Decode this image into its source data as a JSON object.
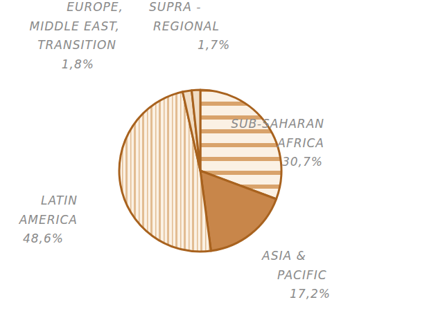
{
  "chart_data": {
    "type": "pie",
    "categories": [
      "SUB-SAHARAN\nAFRICA",
      "ASIA &\nPACIFIC",
      "LATIN\nAMERICA",
      "EUROPE,\nMIDDLE EAST,\nTRANSITION",
      "SUPRA -\nREGIONAL"
    ],
    "values": [
      30.7,
      17.2,
      48.6,
      1.8,
      1.7
    ],
    "value_labels": [
      "30,7%",
      "17,2%",
      "48,6%",
      "1,8%",
      "1,7%"
    ],
    "colors": [
      "#d9a36b",
      "#c8864a",
      "#e2bc92",
      "#f1dcc3",
      "#f1dcc3"
    ],
    "data_labels": true
  }
}
